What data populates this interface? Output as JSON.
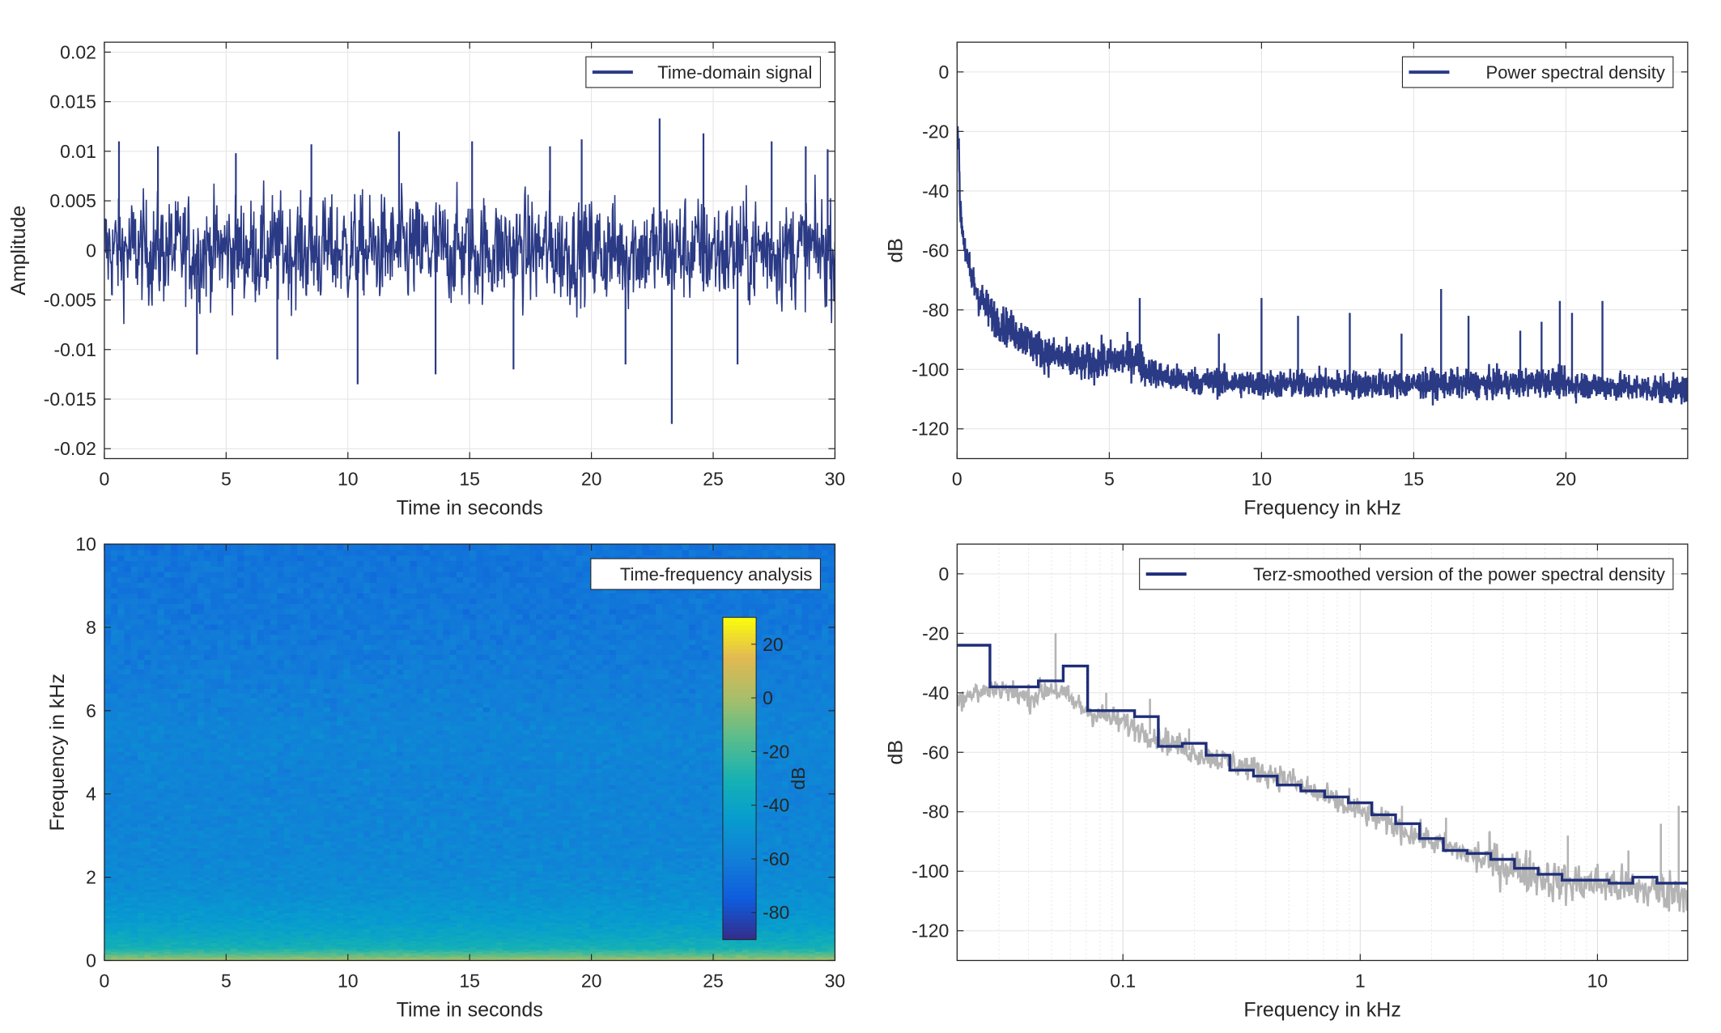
{
  "chart_data": [
    {
      "type": "line",
      "panel": "top-left",
      "xlabel": "Time in seconds",
      "ylabel": "Amplitude",
      "xlim": [
        0,
        30
      ],
      "ylim": [
        -0.021,
        0.021
      ],
      "xticks": [
        0,
        5,
        10,
        15,
        20,
        25,
        30
      ],
      "yticks": [
        -0.02,
        -0.015,
        -0.01,
        -0.005,
        0,
        0.005,
        0.01,
        0.015,
        0.02
      ],
      "ytick_labels": [
        "-0.02",
        "-0.015",
        "-0.01",
        "-0.005",
        "0",
        "0.005",
        "0.01",
        "0.015",
        "0.02"
      ],
      "grid": true,
      "legend": "top-right",
      "series": [
        {
          "name": "Time-domain signal",
          "color": "#2b3a85",
          "amplitude_envelope": [
            -0.0175,
            0.0135
          ],
          "x": [
            0.6,
            2.2,
            3.8,
            5.4,
            7.1,
            8.5,
            10.4,
            12.1,
            13.6,
            15.1,
            16.8,
            18.3,
            19.6,
            21.4,
            22.8,
            23.3,
            24.6,
            26.0,
            27.4,
            28.8,
            29.7
          ],
          "y": [
            0.011,
            0.0105,
            -0.0105,
            0.0098,
            -0.011,
            0.0107,
            -0.0135,
            0.012,
            -0.0125,
            0.011,
            -0.012,
            0.0105,
            0.0112,
            -0.0115,
            0.0133,
            -0.0175,
            0.0118,
            -0.0115,
            0.011,
            0.0105,
            0.0102
          ]
        }
      ]
    },
    {
      "type": "line",
      "panel": "top-right",
      "xlabel": "Frequency in kHz",
      "ylabel": "dB",
      "xlim": [
        0,
        24
      ],
      "ylim": [
        -130,
        10
      ],
      "xticks": [
        0,
        5,
        10,
        15,
        20
      ],
      "yticks": [
        -120,
        -100,
        -80,
        -60,
        -40,
        -20,
        0
      ],
      "grid": true,
      "legend": "top-right",
      "series": [
        {
          "name": "Power spectral density",
          "color": "#2b3a85",
          "x": [
            0.02,
            0.1,
            0.2,
            0.35,
            0.5,
            0.7,
            1.0,
            1.5,
            2.0,
            2.5,
            3.0,
            4.0,
            5.0,
            5.9,
            6.2,
            7.0,
            8.0,
            10.0,
            12.0,
            14.0,
            16.0,
            18.0,
            19.5,
            20.0,
            22.0,
            24.0
          ],
          "y": [
            -15,
            -45,
            -55,
            -65,
            -70,
            -75,
            -80,
            -85,
            -88,
            -92,
            -95,
            -98,
            -97,
            -96,
            -100,
            -103,
            -104,
            -105,
            -105,
            -105,
            -105,
            -105,
            -104,
            -105,
            -106,
            -107
          ],
          "peaks_x": [
            1.7,
            2.7,
            6.0,
            8.6,
            10.0,
            11.2,
            12.9,
            14.6,
            15.9,
            16.8,
            18.5,
            19.2,
            19.8,
            20.2,
            21.2
          ],
          "peaks_y": [
            -85,
            -90,
            -76,
            -88,
            -76,
            -82,
            -81,
            -88,
            -73,
            -82,
            -87,
            -84,
            -77,
            -81,
            -77
          ]
        }
      ]
    },
    {
      "type": "heatmap",
      "panel": "bottom-left",
      "xlabel": "Time in seconds",
      "ylabel": "Frequency in kHz",
      "xlim": [
        0,
        30
      ],
      "ylim": [
        0,
        10
      ],
      "xticks": [
        0,
        5,
        10,
        15,
        20,
        25,
        30
      ],
      "yticks": [
        0,
        2,
        4,
        6,
        8,
        10
      ],
      "legend": "top-right",
      "series": [
        {
          "name": "Time-frequency analysis"
        }
      ],
      "colorbar": {
        "label": "dB",
        "range": [
          -90,
          30
        ],
        "ticks": [
          20,
          0,
          -20,
          -40,
          -60,
          -80
        ],
        "colormap": "parula"
      },
      "frequency_profile_khz": [
        0,
        0.1,
        0.3,
        0.6,
        1.0,
        1.7,
        2.5,
        4.0,
        5.5,
        6.0,
        8.0,
        10.0
      ],
      "frequency_profile_db": [
        5,
        -10,
        -30,
        -38,
        -45,
        -52,
        -55,
        -57,
        -56,
        -58,
        -62,
        -64
      ]
    },
    {
      "type": "line",
      "panel": "bottom-right",
      "xlabel": "Frequency in kHz",
      "ylabel": "dB",
      "xscale": "log",
      "xlim": [
        0.02,
        24
      ],
      "ylim": [
        -130,
        10
      ],
      "xticks": [
        0.1,
        1,
        10
      ],
      "xtick_labels": [
        "0.1",
        "1",
        "10"
      ],
      "yticks": [
        -120,
        -100,
        -80,
        -60,
        -40,
        -20,
        0
      ],
      "grid": true,
      "legend": "top-right",
      "series": [
        {
          "name": "Terz-smoothed version of the power spectral density",
          "color": "#1f2e78",
          "style": "step",
          "x": [
            0.02,
            0.0275,
            0.0275,
            0.035,
            0.035,
            0.044,
            0.044,
            0.056,
            0.056,
            0.071,
            0.071,
            0.089,
            0.089,
            0.112,
            0.112,
            0.141,
            0.141,
            0.178,
            0.178,
            0.224,
            0.224,
            0.282,
            0.282,
            0.355,
            0.355,
            0.447,
            0.447,
            0.562,
            0.562,
            0.708,
            0.708,
            0.891,
            0.891,
            1.12,
            1.12,
            1.41,
            1.41,
            1.78,
            1.78,
            2.24,
            2.24,
            2.82,
            2.82,
            3.55,
            3.55,
            4.47,
            4.47,
            5.62,
            5.62,
            7.08,
            7.08,
            8.91,
            8.91,
            11.2,
            11.2,
            14.1,
            14.1,
            17.8,
            17.8,
            24.0
          ],
          "y": [
            -24,
            -24,
            -38,
            -38,
            -38,
            -38,
            -36,
            -36,
            -31,
            -31,
            -46,
            -46,
            -46,
            -46,
            -48,
            -48,
            -58,
            -58,
            -57,
            -57,
            -61,
            -61,
            -66,
            -66,
            -68,
            -68,
            -71,
            -71,
            -73,
            -73,
            -75,
            -75,
            -77,
            -77,
            -81,
            -81,
            -84,
            -84,
            -89,
            -89,
            -93,
            -93,
            -94,
            -94,
            -96,
            -96,
            -99,
            -99,
            -101,
            -101,
            -103,
            -103,
            -103,
            -103,
            -104,
            -104,
            -102,
            -102,
            -104,
            -104
          ]
        },
        {
          "name": "",
          "color": "#b4b4b4",
          "x": [
            0.02,
            0.03,
            0.04,
            0.05,
            0.07,
            0.1,
            0.15,
            0.2,
            0.3,
            0.5,
            0.7,
            1.0,
            1.5,
            2.0,
            3.0,
            5.0,
            7.0,
            10.0,
            15.0,
            24.0
          ],
          "y": [
            -42,
            -38,
            -42,
            -38,
            -46,
            -50,
            -56,
            -60,
            -64,
            -69,
            -75,
            -80,
            -86,
            -90,
            -95,
            -100,
            -104,
            -104,
            -106,
            -107
          ],
          "peaks_x": [
            0.052,
            0.085,
            0.13,
            0.19,
            0.26,
            0.42,
            0.6,
            0.9,
            1.5,
            2.3,
            3.5,
            5.2,
            7.5,
            13.5,
            18.5,
            22.0
          ],
          "peaks_y": [
            -20,
            -40,
            -42,
            -52,
            -62,
            -65,
            -68,
            -72,
            -78,
            -82,
            -87,
            -93,
            -88,
            -93,
            -84,
            -78
          ]
        }
      ]
    }
  ]
}
